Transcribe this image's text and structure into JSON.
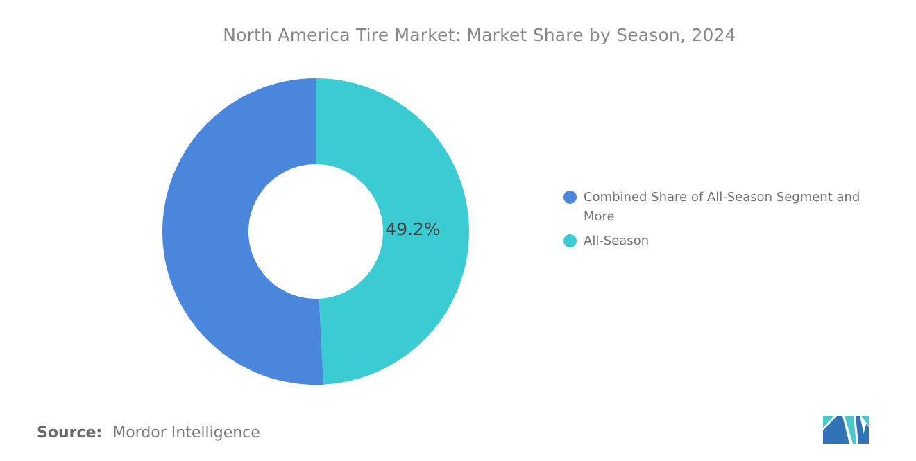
{
  "chart_data": {
    "type": "pie",
    "subtype": "donut",
    "title": "North America Tire Market: Market Share by Season, 2024",
    "start_angle": "top",
    "direction": "counterclockwise",
    "inner_radius_ratio": 0.44,
    "legend_position": "right",
    "values_unit": "%",
    "segments": [
      {
        "label": "Combined Share of All-Season Segment and More",
        "value": 50.8,
        "color": "#4a86db",
        "data_label": ""
      },
      {
        "label": "All-Season",
        "value": 49.2,
        "color": "#3bccd3",
        "data_label": "49.2%"
      }
    ]
  },
  "source": {
    "label": "Source:",
    "value": "Mordor Intelligence"
  },
  "logo": {
    "name": "mordor-intelligence-logo",
    "teal": "#4cc7ce",
    "blue": "#2f72b6"
  }
}
